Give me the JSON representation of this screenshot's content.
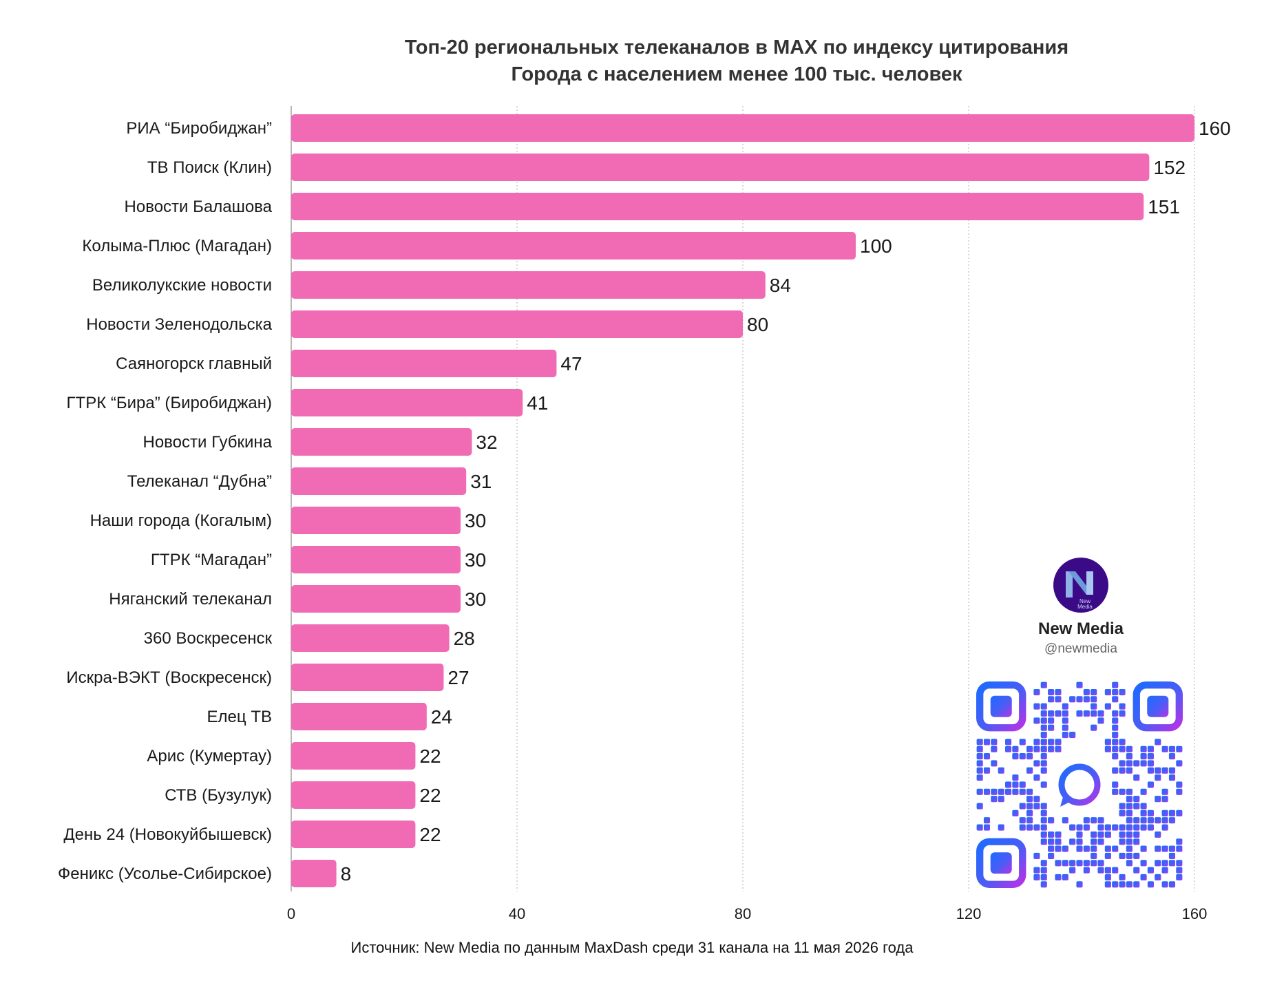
{
  "title": {
    "line1": "Топ-20 региональных телеканалов в MAX по индексу цитирования",
    "line2": "Города с населением менее 100 тыс. человек"
  },
  "source": "Источник: New Media по данным MaxDash среди 31 канала на 11 мая 2026 года",
  "brand": {
    "name": "New Media",
    "handle": "@newmedia",
    "logo_text": "New Media",
    "logo_icon": "new-media-logo-icon",
    "qr_icon": "qr-code-icon"
  },
  "colors": {
    "bar": "#F06BB4",
    "grid": "#B0B0B0",
    "logo_bg": "#3A0A87"
  },
  "chart_data": {
    "type": "bar",
    "orientation": "horizontal",
    "categories": [
      "РИА “Биробиджан”",
      "ТВ Поиск (Клин)",
      "Новости Балашова",
      "Колыма-Плюс (Магадан)",
      "Великолукские новости",
      "Новости Зеленодольска",
      "Саяногорск главный",
      "ГТРК “Бира” (Биробиджан)",
      "Новости Губкина",
      "Телеканал “Дубна”",
      "Наши города (Когалым)",
      "ГТРК “Магадан”",
      "Няганский телеканал",
      "360 Воскресенск",
      "Искра-ВЭКТ (Воскресенск)",
      "Елец ТВ",
      "Арис (Кумертау)",
      "СТВ (Бузулук)",
      "День 24 (Новокуйбышевск)",
      "Феникс (Усолье-Сибирское)"
    ],
    "values": [
      160,
      152,
      151,
      100,
      84,
      80,
      47,
      41,
      32,
      31,
      30,
      30,
      30,
      28,
      27,
      24,
      22,
      22,
      22,
      8
    ],
    "xlim": [
      0,
      160
    ],
    "xticks": [
      0,
      40,
      80,
      120,
      160
    ],
    "grid": true,
    "data_labels": true,
    "title": "Топ-20 региональных телеканалов в MAX по индексу цитирования",
    "subtitle": "Города с населением менее 100 тыс. человек",
    "xlabel": "",
    "ylabel": ""
  }
}
